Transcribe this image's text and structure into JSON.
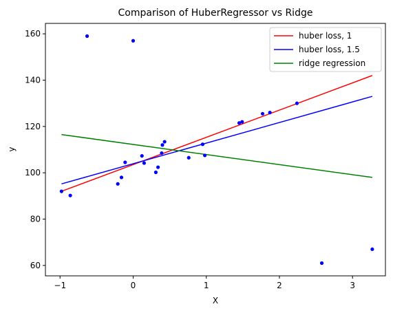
{
  "chart_data": {
    "type": "scatter",
    "title": "Comparison of HuberRegressor vs Ridge",
    "xlabel": "X",
    "ylabel": "y",
    "xlim": [
      -1.2,
      3.45
    ],
    "ylim": [
      55.5,
      164.5
    ],
    "xticks": [
      -1,
      0,
      1,
      2,
      3
    ],
    "yticks": [
      60,
      80,
      100,
      120,
      140,
      160
    ],
    "legend_position": "top-right",
    "points": {
      "color": "#0000ff",
      "x": [
        -0.98,
        -0.86,
        -0.63,
        -0.21,
        -0.16,
        -0.11,
        0.0,
        0.12,
        0.15,
        0.31,
        0.34,
        0.39,
        0.4,
        0.43,
        0.76,
        0.95,
        0.98,
        1.45,
        1.49,
        1.77,
        1.87,
        2.24,
        2.58,
        3.27
      ],
      "y": [
        92,
        90.2,
        159,
        95.2,
        98,
        104.5,
        157,
        107.3,
        104.2,
        100.2,
        102.4,
        108.5,
        112,
        113.4,
        106.5,
        112.3,
        107.5,
        121.5,
        122,
        125.5,
        126,
        130,
        61,
        67
      ]
    },
    "series": [
      {
        "name": "huber loss, 1",
        "color": "#ff0000",
        "x": [
          -0.98,
          3.27
        ],
        "y": [
          92,
          142
        ]
      },
      {
        "name": "huber loss, 1.5",
        "color": "#0000ff",
        "x": [
          -0.98,
          3.27
        ],
        "y": [
          95.2,
          133
        ]
      },
      {
        "name": "ridge regression",
        "color": "#008000",
        "x": [
          -0.98,
          3.27
        ],
        "y": [
          116.5,
          98
        ]
      }
    ]
  }
}
